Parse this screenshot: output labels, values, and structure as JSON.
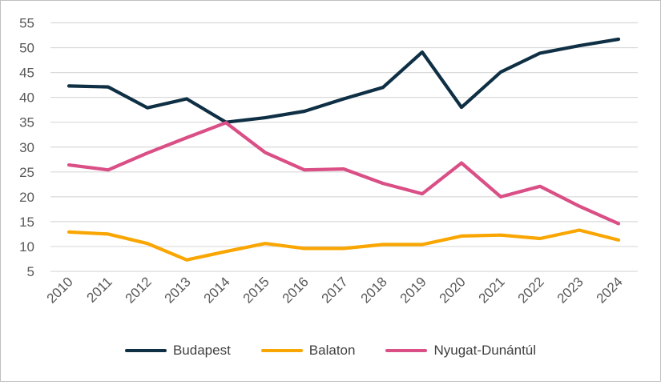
{
  "chart_data": {
    "type": "line",
    "title": "",
    "xlabel": "",
    "ylabel": "",
    "ylim": [
      5,
      55
    ],
    "yticks": [
      5,
      10,
      15,
      20,
      25,
      30,
      35,
      40,
      45,
      50,
      55
    ],
    "grid": true,
    "legend_position": "bottom",
    "categories": [
      "2010",
      "2011",
      "2012",
      "2013",
      "2014",
      "2015",
      "2016",
      "2017",
      "2018",
      "2019",
      "2020",
      "2021",
      "2022",
      "2023",
      "2024"
    ],
    "series": [
      {
        "name": "Budapest",
        "color": "#0e2f44",
        "values": [
          42.3,
          42.1,
          37.9,
          39.7,
          35.0,
          35.9,
          37.2,
          39.7,
          42.0,
          49.1,
          38.0,
          45.1,
          48.9,
          50.4,
          51.7
        ]
      },
      {
        "name": "Balaton",
        "color": "#f9a602",
        "values": [
          12.9,
          12.5,
          10.6,
          7.3,
          9.0,
          10.6,
          9.6,
          9.6,
          10.4,
          10.4,
          12.1,
          12.3,
          11.6,
          13.3,
          11.3
        ]
      },
      {
        "name": "Nyugat-Dunántúl",
        "color": "#d94f86",
        "values": [
          26.4,
          25.4,
          28.8,
          31.9,
          34.9,
          28.9,
          25.4,
          25.6,
          22.7,
          20.6,
          26.8,
          20.0,
          22.1,
          18.1,
          14.6
        ]
      }
    ]
  }
}
